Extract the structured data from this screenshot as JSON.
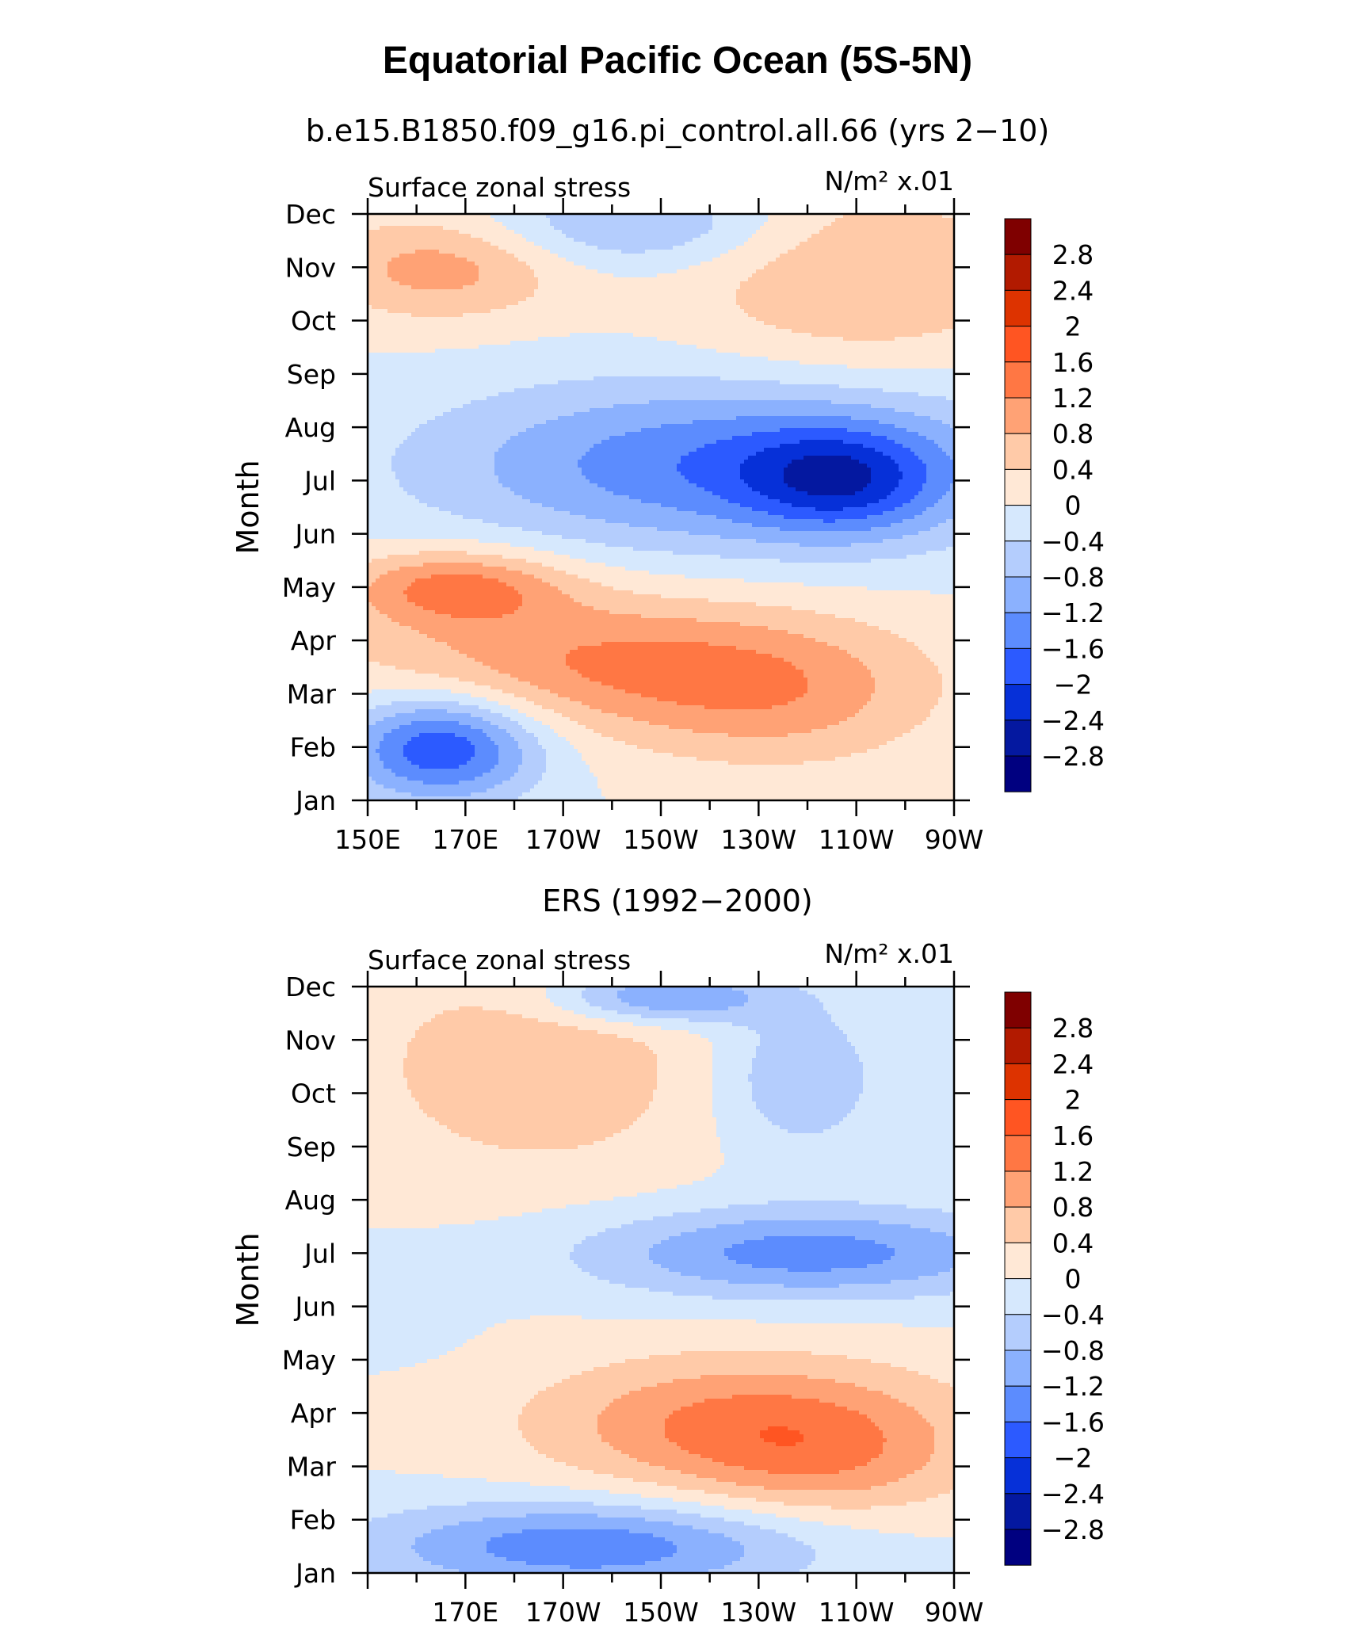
{
  "title": "Equatorial Pacific Ocean (5S-5N)",
  "colorbar": {
    "labels": [
      "2.8",
      "2.4",
      "2",
      "1.6",
      "1.2",
      "0.8",
      "0.4",
      "0",
      "−0.4",
      "−0.8",
      "−1.2",
      "−1.6",
      "−2",
      "−2.4",
      "−2.8"
    ],
    "colors": [
      "#7f0000",
      "#b21a00",
      "#dd3300",
      "#ff5522",
      "#ff7744",
      "#ffa275",
      "#ffcaa8",
      "#ffe8d6",
      "#d6e8fd",
      "#b4cdfd",
      "#8bb1fe",
      "#5c8cfe",
      "#2c5aff",
      "#0630d8",
      "#0418a0",
      "#000080"
    ]
  },
  "chart_data": [
    {
      "type": "heatmap",
      "subtitle": "b.e15.B1850.f09_g16.pi_control.all.66 (yrs 2−10)",
      "left_label": "Surface zonal stress",
      "units_label": "N/m² x.01",
      "ylabel": "Month",
      "xticks": [
        "150E",
        "170E",
        "170W",
        "150W",
        "130W",
        "110W",
        "90W"
      ],
      "yticks": [
        "Jan",
        "Feb",
        "Mar",
        "Apr",
        "May",
        "Jun",
        "Jul",
        "Aug",
        "Sep",
        "Oct",
        "Nov",
        "Dec"
      ],
      "xlim": [
        150,
        270
      ],
      "levels": [
        -2.8,
        -2.4,
        -2.0,
        -1.6,
        -1.2,
        -0.8,
        -0.4,
        0,
        0.4,
        0.8,
        1.2,
        1.6,
        2.0,
        2.4,
        2.8
      ],
      "features": [
        {
          "lon": 165,
          "month": 11.0,
          "value": 1.0,
          "ax": 18,
          "ay": 0.7
        },
        {
          "lon": 250,
          "month": 10.8,
          "value": 0.8,
          "ax": 25,
          "ay": 1.3
        },
        {
          "lon": 205,
          "month": 11.8,
          "value": -0.9,
          "ax": 22,
          "ay": 0.6
        },
        {
          "lon": 225,
          "month": 7.3,
          "value": -1.6,
          "ax": 42,
          "ay": 1.1
        },
        {
          "lon": 247,
          "month": 7.0,
          "value": -1.3,
          "ax": 14,
          "ay": 0.7
        },
        {
          "lon": 168,
          "month": 5.0,
          "value": 1.3,
          "ax": 16,
          "ay": 0.5
        },
        {
          "lon": 200,
          "month": 3.6,
          "value": 1.2,
          "ax": 36,
          "ay": 0.9
        },
        {
          "lon": 235,
          "month": 2.8,
          "value": 0.7,
          "ax": 22,
          "ay": 0.9
        },
        {
          "lon": 165,
          "month": 2.0,
          "value": -2.0,
          "ax": 14,
          "ay": 0.7
        }
      ]
    },
    {
      "type": "heatmap",
      "subtitle": "ERS (1992−2000)",
      "left_label": "Surface zonal stress",
      "units_label": "N/m² x.01",
      "ylabel": "Month",
      "xticks": [
        "170E",
        "170W",
        "150W",
        "130W",
        "110W",
        "90W"
      ],
      "yticks": [
        "Jan",
        "Feb",
        "Mar",
        "Apr",
        "May",
        "Jun",
        "Jul",
        "Aug",
        "Sep",
        "Oct",
        "Nov",
        "Dec"
      ],
      "xlim": [
        150,
        270
      ],
      "levels": [
        -2.8,
        -2.4,
        -2.0,
        -1.6,
        -1.2,
        -0.8,
        -0.4,
        0,
        0.4,
        0.8,
        1.2,
        1.6,
        2.0,
        2.4,
        2.8
      ],
      "features": [
        {
          "lon": 185,
          "month": 10.5,
          "value": 0.7,
          "ax": 26,
          "ay": 1.5
        },
        {
          "lon": 210,
          "month": 11.8,
          "value": -1.4,
          "ax": 16,
          "ay": 0.35
        },
        {
          "lon": 238,
          "month": 10.3,
          "value": -0.8,
          "ax": 12,
          "ay": 1.0
        },
        {
          "lon": 240,
          "month": 7.0,
          "value": -1.4,
          "ax": 32,
          "ay": 0.6
        },
        {
          "lon": 227,
          "month": 3.8,
          "value": 1.3,
          "ax": 30,
          "ay": 0.9
        },
        {
          "lon": 245,
          "month": 3.0,
          "value": 0.6,
          "ax": 20,
          "ay": 0.8
        },
        {
          "lon": 195,
          "month": 1.5,
          "value": -1.5,
          "ax": 32,
          "ay": 0.6
        },
        {
          "lon": 155,
          "month": 6.0,
          "value": -0.3,
          "ax": 10,
          "ay": 0.6
        }
      ]
    }
  ]
}
